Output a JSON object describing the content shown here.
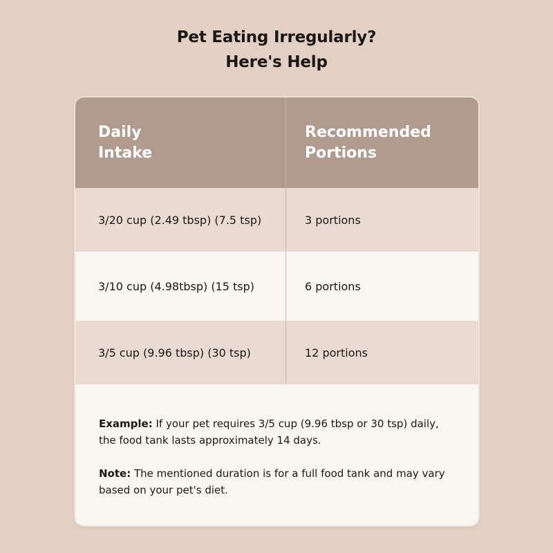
{
  "title": {
    "line1": "Pet Eating Irregularly?",
    "line2": "Here's Help"
  },
  "table": {
    "headers": [
      {
        "line1": "Daily",
        "line2": "Intake"
      },
      {
        "line1": "Recommended",
        "line2": "Portions"
      }
    ],
    "rows": [
      {
        "intake": "3/20 cup (2.49 tbsp) (7.5 tsp)",
        "portions": "3 portions"
      },
      {
        "intake": "3/10 cup (4.98tbsp) (15 tsp)",
        "portions": "6 portions"
      },
      {
        "intake": "3/5 cup (9.96 tbsp) (30 tsp)",
        "portions": "12 portions"
      }
    ]
  },
  "notes": {
    "example_label": "Example:",
    "example_text": " If your pet requires 3/5 cup (9.96 tbsp or 30 tsp) daily, the food tank lasts approximately 14 days.",
    "note_label": "Note:",
    "note_text": " The mentioned duration is for a full food tank and may vary based on your pet's diet."
  }
}
